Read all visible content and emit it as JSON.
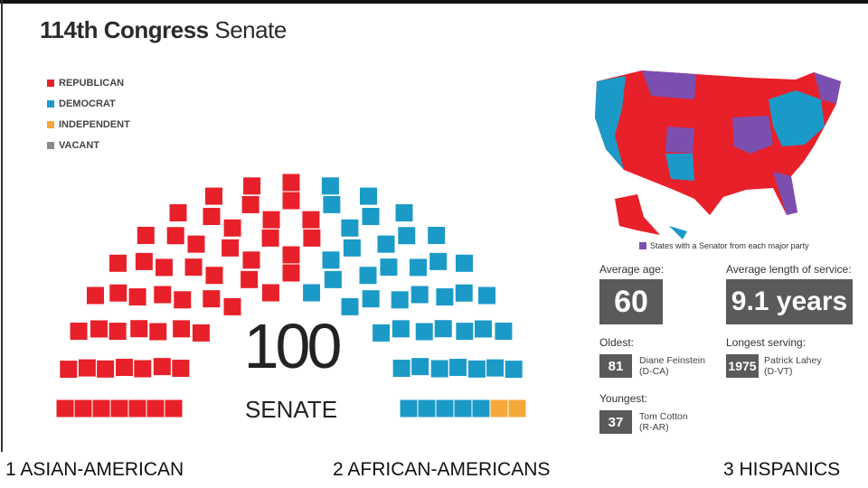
{
  "header": {
    "title_bold": "114th Congress",
    "title_rest": "Senate"
  },
  "legend": {
    "items": [
      {
        "label": "REPUBLICAN",
        "color": "#e8202a",
        "seats": 54
      },
      {
        "label": "DEMOCRAT",
        "color": "#1b9ac8",
        "seats": 44
      },
      {
        "label": "INDEPENDENT",
        "color": "#f6a83a",
        "seats": 2
      },
      {
        "label": "VACANT",
        "color": "#8a8a8a",
        "seats": 0
      }
    ]
  },
  "center": {
    "number": "100",
    "label": "SENATE"
  },
  "map": {
    "caption": "States with a Senator from each major party"
  },
  "stats": {
    "average_age": {
      "label": "Average age:",
      "value": "60"
    },
    "average_service": {
      "label": "Average length of service:",
      "value": "9.1 years"
    },
    "oldest": {
      "label": "Oldest:",
      "value": "81",
      "name": "Diane Feinstein",
      "party": "(D-CA)"
    },
    "longest": {
      "label": "Longest serving:",
      "value": "1975",
      "name": "Patrick Lahey",
      "party": "(D-VT)"
    },
    "youngest": {
      "label": "Youngest:",
      "value": "37",
      "name": "Tom Cotton",
      "party": "(R-AR)"
    }
  },
  "footer": {
    "items": [
      "1 ASIAN-AMERICAN",
      "2 AFRICAN-AMERICANS",
      "3 HISPANICS"
    ]
  }
}
